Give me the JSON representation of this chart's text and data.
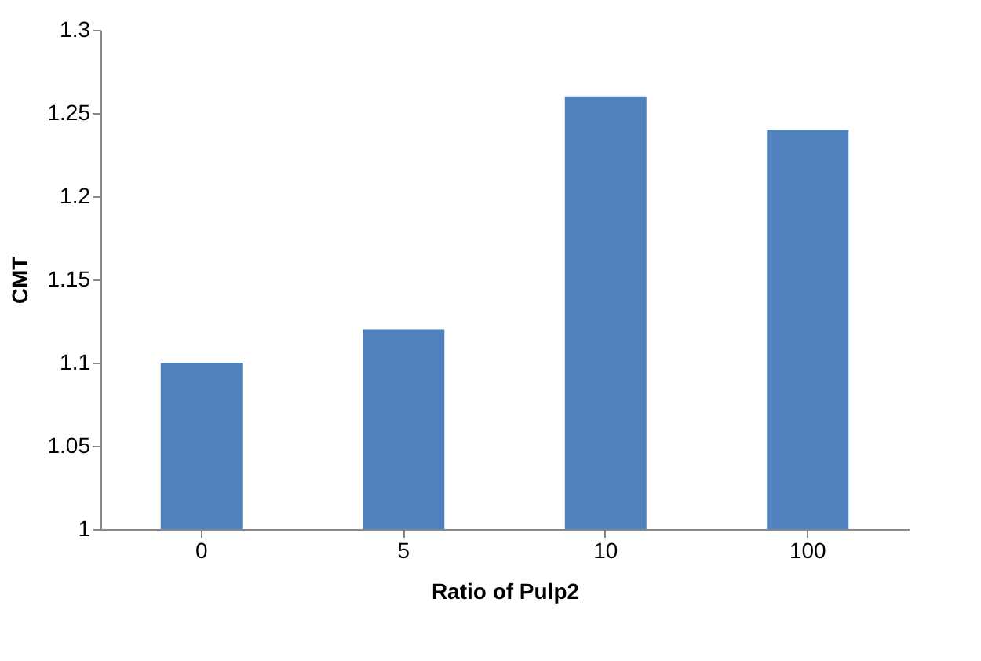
{
  "chart_data": {
    "type": "bar",
    "xlabel": "Ratio of Pulp2",
    "ylabel": "CMT",
    "categories": [
      "0",
      "5",
      "10",
      "100"
    ],
    "values": [
      1.1,
      1.12,
      1.26,
      1.24
    ],
    "color": "#4f81bd",
    "ylim": [
      1,
      1.3
    ],
    "yticks": [
      1,
      1.05,
      1.1,
      1.15,
      1.2,
      1.25,
      1.3
    ]
  }
}
